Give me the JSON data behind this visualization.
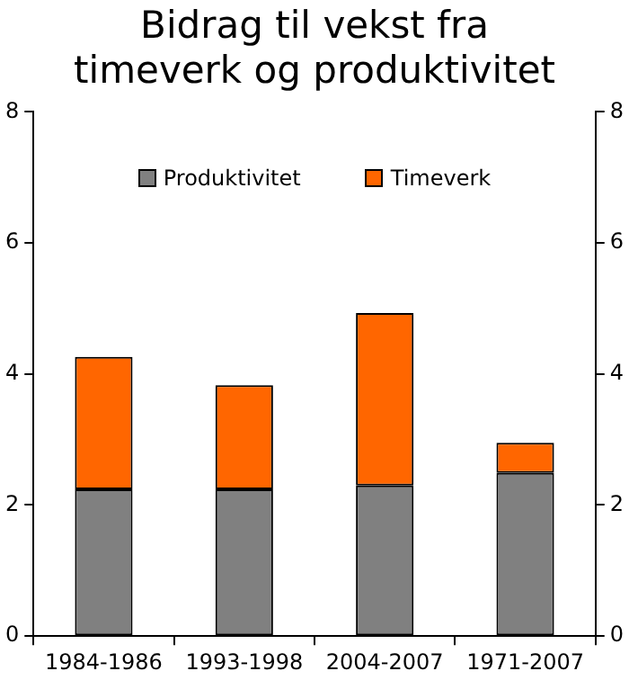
{
  "chart_data": {
    "type": "bar",
    "title": "Bidrag til vekst fra timeverk og produktivitet",
    "categories": [
      "1984-1986",
      "1993-1998",
      "2004-2007",
      "1971-2007"
    ],
    "stacked": true,
    "series": [
      {
        "name": "Produktivitet",
        "color": "#808080",
        "values": [
          2.24,
          2.24,
          2.3,
          2.49
        ]
      },
      {
        "name": "Timeverk",
        "color": "#ff6600",
        "values": [
          2.02,
          1.59,
          2.63,
          0.46
        ]
      }
    ],
    "ylim": [
      0,
      8
    ],
    "yticks": [
      0,
      2,
      4,
      6,
      8
    ],
    "y2lim": [
      0,
      8
    ],
    "y2ticks": [
      0,
      2,
      4,
      6,
      8
    ],
    "grid": false,
    "legend": "top"
  }
}
